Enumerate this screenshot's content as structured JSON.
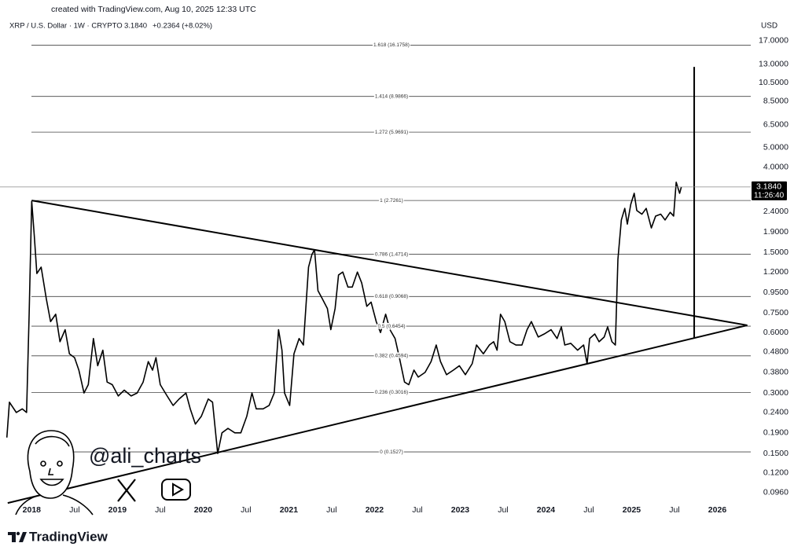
{
  "caption": "created with TradingView.com, Aug 10, 2025 12:33 UTC",
  "chart_data": {
    "type": "line",
    "title": "XRP / U.S. Dollar · 1W · CRYPTO",
    "price_label": "3.1840",
    "change": "+0.2364 (+8.02%)",
    "y_axis_label": "USD",
    "countdown": "11:26:40",
    "color": "#000000",
    "log_scale": true,
    "grid": false,
    "xlim": [
      2017.63,
      2026.39
    ],
    "ylim": [
      0.073,
      19.8
    ],
    "xticks": [
      2018,
      {
        "value": 2018.5,
        "label": "Jul"
      },
      2019,
      {
        "value": 2019.5,
        "label": "Jul"
      },
      2020,
      {
        "value": 2020.5,
        "label": "Jul"
      },
      2021,
      {
        "value": 2021.5,
        "label": "Jul"
      },
      2022,
      {
        "value": 2022.5,
        "label": "Jul"
      },
      2023,
      {
        "value": 2023.5,
        "label": "Jul"
      },
      2024,
      {
        "value": 2024.5,
        "label": "Jul"
      },
      2025,
      {
        "value": 2025.5,
        "label": "Jul"
      },
      2026
    ],
    "yticks": [
      {
        "value": 17,
        "label": "17.0000"
      },
      {
        "value": 13,
        "label": "13.0000"
      },
      {
        "value": 10.5,
        "label": "10.5000"
      },
      {
        "value": 8.5,
        "label": "8.5000"
      },
      {
        "value": 6.5,
        "label": "6.5000"
      },
      {
        "value": 5,
        "label": "5.0000"
      },
      {
        "value": 4,
        "label": "4.0000"
      },
      {
        "value": 2.4,
        "label": "2.4000"
      },
      {
        "value": 1.9,
        "label": "1.9000"
      },
      {
        "value": 1.5,
        "label": "1.5000"
      },
      {
        "value": 1.2,
        "label": "1.2000"
      },
      {
        "value": 0.95,
        "label": "0.9500"
      },
      {
        "value": 0.75,
        "label": "0.7500"
      },
      {
        "value": 0.6,
        "label": "0.6000"
      },
      {
        "value": 0.48,
        "label": "0.4800"
      },
      {
        "value": 0.38,
        "label": "0.3800"
      },
      {
        "value": 0.3,
        "label": "0.3000"
      },
      {
        "value": 0.24,
        "label": "0.2400"
      },
      {
        "value": 0.19,
        "label": "0.1900"
      },
      {
        "value": 0.15,
        "label": "0.1500"
      },
      {
        "value": 0.12,
        "label": "0.1200"
      },
      {
        "value": 0.096,
        "label": "0.0960"
      }
    ],
    "fib_levels": [
      {
        "value": 16.1758,
        "label": "1.618 (16.1758)"
      },
      {
        "value": 8.9866,
        "label": "1.414 (8.9866)"
      },
      {
        "value": 5.9691,
        "label": "1.272 (5.9691)"
      },
      {
        "value": 2.7261,
        "label": "1 (2.7261)"
      },
      {
        "value": 1.4714,
        "label": "0.786 (1.4714)"
      },
      {
        "value": 0.9068,
        "label": "0.618 (0.9068)"
      },
      {
        "value": 0.6454,
        "label": "0.5 (0.6454)"
      },
      {
        "value": 0.4594,
        "label": "0.382 (0.4594)"
      },
      {
        "value": 0.3016,
        "label": "0.236 (0.3016)"
      },
      {
        "value": 0.1527,
        "label": "0 (0.1527)"
      }
    ],
    "trendlines": [
      {
        "x": [
          2018.0,
          2026.35
        ],
        "values": [
          2.7261,
          0.652
        ]
      },
      {
        "x": [
          2017.72,
          2026.35
        ],
        "values": [
          0.085,
          0.652
        ]
      },
      {
        "x": [
          2025.73,
          2025.73
        ],
        "values": [
          12.6,
          0.564
        ]
      }
    ],
    "x": [
      2017.71,
      2017.74,
      2017.82,
      2017.89,
      2017.94,
      2017.97,
      2018.0,
      2018.03,
      2018.06,
      2018.11,
      2018.17,
      2018.22,
      2018.28,
      2018.33,
      2018.39,
      2018.44,
      2018.5,
      2018.55,
      2018.61,
      2018.66,
      2018.72,
      2018.77,
      2018.83,
      2018.88,
      2018.94,
      2019.01,
      2019.08,
      2019.16,
      2019.23,
      2019.3,
      2019.36,
      2019.41,
      2019.45,
      2019.5,
      2019.58,
      2019.65,
      2019.72,
      2019.8,
      2019.85,
      2019.91,
      2019.98,
      2020.06,
      2020.11,
      2020.17,
      2020.22,
      2020.29,
      2020.37,
      2020.44,
      2020.51,
      2020.57,
      2020.62,
      2020.7,
      2020.77,
      2020.83,
      2020.88,
      2020.92,
      2020.95,
      2021.01,
      2021.06,
      2021.12,
      2021.17,
      2021.23,
      2021.27,
      2021.3,
      2021.34,
      2021.39,
      2021.45,
      2021.49,
      2021.54,
      2021.58,
      2021.63,
      2021.69,
      2021.74,
      2021.8,
      2021.85,
      2021.91,
      2021.96,
      2022.02,
      2022.07,
      2022.13,
      2022.18,
      2022.24,
      2022.29,
      2022.35,
      2022.4,
      2022.46,
      2022.51,
      2022.59,
      2022.66,
      2022.72,
      2022.77,
      2022.84,
      2022.92,
      2022.99,
      2023.06,
      2023.14,
      2023.19,
      2023.27,
      2023.34,
      2023.39,
      2023.43,
      2023.47,
      2023.52,
      2023.58,
      2023.65,
      2023.72,
      2023.78,
      2023.83,
      2023.91,
      2023.98,
      2024.06,
      2024.13,
      2024.18,
      2024.22,
      2024.29,
      2024.37,
      2024.44,
      2024.48,
      2024.51,
      2024.57,
      2024.62,
      2024.68,
      2024.72,
      2024.77,
      2024.81,
      2024.84,
      2024.88,
      2024.92,
      2024.95,
      2024.99,
      2025.03,
      2025.06,
      2025.12,
      2025.17,
      2025.23,
      2025.28,
      2025.34,
      2025.39,
      2025.45,
      2025.49,
      2025.52,
      2025.56,
      2025.58
    ],
    "values": [
      0.18,
      0.27,
      0.24,
      0.25,
      0.24,
      0.74,
      2.7,
      1.82,
      1.18,
      1.27,
      0.885,
      0.68,
      0.74,
      0.54,
      0.62,
      0.47,
      0.45,
      0.39,
      0.3,
      0.33,
      0.56,
      0.41,
      0.49,
      0.34,
      0.33,
      0.29,
      0.31,
      0.29,
      0.3,
      0.34,
      0.43,
      0.39,
      0.45,
      0.33,
      0.29,
      0.26,
      0.28,
      0.3,
      0.25,
      0.21,
      0.23,
      0.28,
      0.27,
      0.15,
      0.19,
      0.2,
      0.19,
      0.19,
      0.23,
      0.3,
      0.25,
      0.25,
      0.26,
      0.3,
      0.62,
      0.49,
      0.3,
      0.26,
      0.47,
      0.56,
      0.52,
      1.27,
      1.47,
      1.55,
      0.97,
      0.885,
      0.79,
      0.62,
      0.79,
      1.16,
      1.2,
      1.01,
      1.01,
      1.2,
      1.06,
      0.81,
      0.85,
      0.68,
      0.6,
      0.74,
      0.62,
      0.56,
      0.45,
      0.34,
      0.33,
      0.39,
      0.36,
      0.38,
      0.43,
      0.52,
      0.43,
      0.37,
      0.39,
      0.41,
      0.37,
      0.42,
      0.52,
      0.47,
      0.52,
      0.54,
      0.49,
      0.74,
      0.68,
      0.54,
      0.52,
      0.52,
      0.62,
      0.68,
      0.57,
      0.59,
      0.62,
      0.56,
      0.64,
      0.52,
      0.53,
      0.49,
      0.52,
      0.42,
      0.56,
      0.59,
      0.54,
      0.57,
      0.64,
      0.54,
      0.52,
      1.39,
      2.18,
      2.49,
      2.08,
      2.61,
      2.96,
      2.43,
      2.33,
      2.49,
      1.99,
      2.28,
      2.33,
      2.18,
      2.38,
      2.28,
      3.36,
      2.96,
      3.184
    ],
    "annotations": [
      "@ali_charts"
    ]
  },
  "footer": {
    "brand": "TradingView"
  }
}
